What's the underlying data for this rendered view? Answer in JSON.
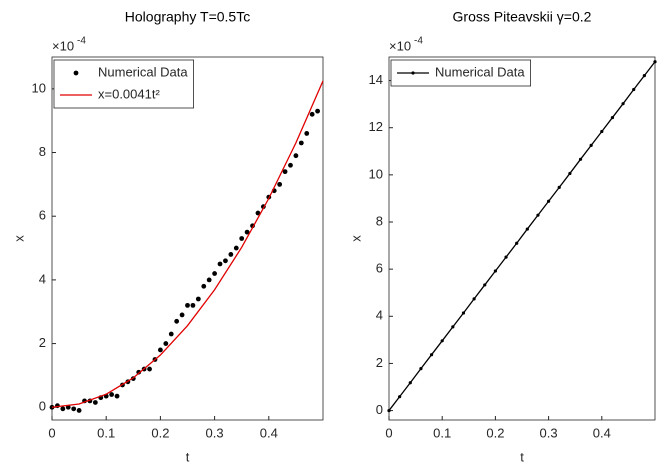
{
  "chart_data": [
    {
      "type": "line",
      "title": "Holography T=0.5Tc",
      "x_label": "t",
      "y_label": "x",
      "y_exponent_base": "×10",
      "y_exponent_power": "-4",
      "xlim": [
        0,
        0.5
      ],
      "xticks": [
        0,
        0.1,
        0.2,
        0.3,
        0.4
      ],
      "ylim": [
        -0.4,
        11
      ],
      "yticks": [
        0,
        2,
        4,
        6,
        8,
        10
      ],
      "legend": "upper left",
      "series": [
        {
          "name": "Numerical Data",
          "color": "#000000",
          "style": "markers",
          "x": [
            0,
            0.01,
            0.02,
            0.03,
            0.04,
            0.05,
            0.06,
            0.07,
            0.08,
            0.09,
            0.1,
            0.11,
            0.12,
            0.13,
            0.14,
            0.15,
            0.16,
            0.17,
            0.18,
            0.19,
            0.2,
            0.21,
            0.22,
            0.23,
            0.24,
            0.25,
            0.26,
            0.27,
            0.28,
            0.29,
            0.3,
            0.31,
            0.32,
            0.33,
            0.34,
            0.35,
            0.36,
            0.37,
            0.38,
            0.39,
            0.4,
            0.41,
            0.42,
            0.43,
            0.44,
            0.45,
            0.46,
            0.47,
            0.48,
            0.49
          ],
          "values": [
            0,
            0.05,
            -0.05,
            0,
            -0.05,
            -0.1,
            0.2,
            0.2,
            0.15,
            0.3,
            0.35,
            0.4,
            0.35,
            0.7,
            0.8,
            0.9,
            1.1,
            1.2,
            1.2,
            1.5,
            1.8,
            2.0,
            2.3,
            2.7,
            2.9,
            3.2,
            3.2,
            3.4,
            3.8,
            4.0,
            4.2,
            4.5,
            4.6,
            4.8,
            5.0,
            5.3,
            5.5,
            5.7,
            6.1,
            6.3,
            6.6,
            6.8,
            7.0,
            7.4,
            7.6,
            7.9,
            8.3,
            8.6,
            9.2,
            9.3
          ]
        },
        {
          "name": "x=0.0041t²",
          "color": "#e00000",
          "style": "line",
          "x": [
            0,
            0.05,
            0.1,
            0.15,
            0.2,
            0.25,
            0.3,
            0.35,
            0.4,
            0.45,
            0.5
          ],
          "values": [
            0,
            0.1025,
            0.41,
            0.9225,
            1.64,
            2.5625,
            3.69,
            5.0225,
            6.56,
            8.3025,
            10.25
          ]
        }
      ]
    },
    {
      "type": "line",
      "title": "Gross Piteavskii γ=0.2",
      "x_label": "t",
      "y_label": "x",
      "y_exponent_base": "×10",
      "y_exponent_power": "-4",
      "xlim": [
        0,
        0.5
      ],
      "xticks": [
        0,
        0.1,
        0.2,
        0.3,
        0.4
      ],
      "ylim": [
        -0.4,
        15
      ],
      "yticks": [
        0,
        2,
        4,
        6,
        8,
        10,
        12,
        14
      ],
      "legend": "upper left",
      "series": [
        {
          "name": "Numerical Data",
          "color": "#000000",
          "style": "line+markers",
          "x": [
            0,
            0.02,
            0.04,
            0.06,
            0.08,
            0.1,
            0.12,
            0.14,
            0.16,
            0.18,
            0.2,
            0.22,
            0.24,
            0.26,
            0.28,
            0.3,
            0.32,
            0.34,
            0.36,
            0.38,
            0.4,
            0.42,
            0.44,
            0.46,
            0.48,
            0.5
          ],
          "values": [
            0,
            0.59,
            1.18,
            1.78,
            2.37,
            2.96,
            3.55,
            4.14,
            4.74,
            5.33,
            5.92,
            6.51,
            7.1,
            7.7,
            8.29,
            8.88,
            9.47,
            10.06,
            10.66,
            11.25,
            11.84,
            12.43,
            13.02,
            13.62,
            14.21,
            14.8
          ]
        }
      ]
    }
  ]
}
